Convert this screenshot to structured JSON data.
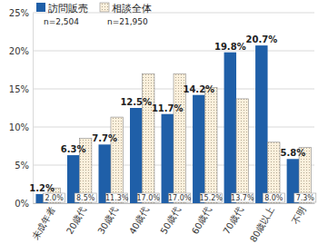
{
  "chart_data": {
    "type": "bar",
    "categories": [
      "未成年者",
      "20歳代",
      "30歳代",
      "40歳代",
      "50歳代",
      "60歳代",
      "70歳代",
      "80歳以上",
      "不明"
    ],
    "series": [
      {
        "name": "訪問販売",
        "color": "#1f5fa8",
        "values": [
          1.2,
          6.3,
          7.7,
          12.5,
          11.7,
          14.2,
          19.8,
          20.7,
          5.8
        ],
        "value_labels": [
          "1.2%",
          "6.3%",
          "7.7%",
          "12.5%",
          "11.7%",
          "14.2%",
          "19.8%",
          "20.7%",
          "5.8%"
        ]
      },
      {
        "name": "相談全体",
        "color": "#fbf0dc",
        "values": [
          2.0,
          8.5,
          11.3,
          17.0,
          17.0,
          15.2,
          13.7,
          8.0,
          7.3
        ],
        "value_labels": [
          "2.0%",
          "8.5%",
          "11.3%",
          "17.0%",
          "17.0%",
          "15.2%",
          "13.7%",
          "8.0%",
          "7.3%"
        ]
      }
    ],
    "annotations": [
      "n=2,504",
      "n=21,950"
    ],
    "ylim": [
      0,
      25
    ],
    "yticks": [
      {
        "value": 0,
        "label": "0%"
      },
      {
        "value": 5,
        "label": "5%"
      },
      {
        "value": 10,
        "label": "10%"
      },
      {
        "value": 15,
        "label": "15%"
      },
      {
        "value": 20,
        "label": "20%"
      },
      {
        "value": 25,
        "label": "25%"
      }
    ],
    "grid": true,
    "legend": "top-left",
    "data_labels": true
  }
}
